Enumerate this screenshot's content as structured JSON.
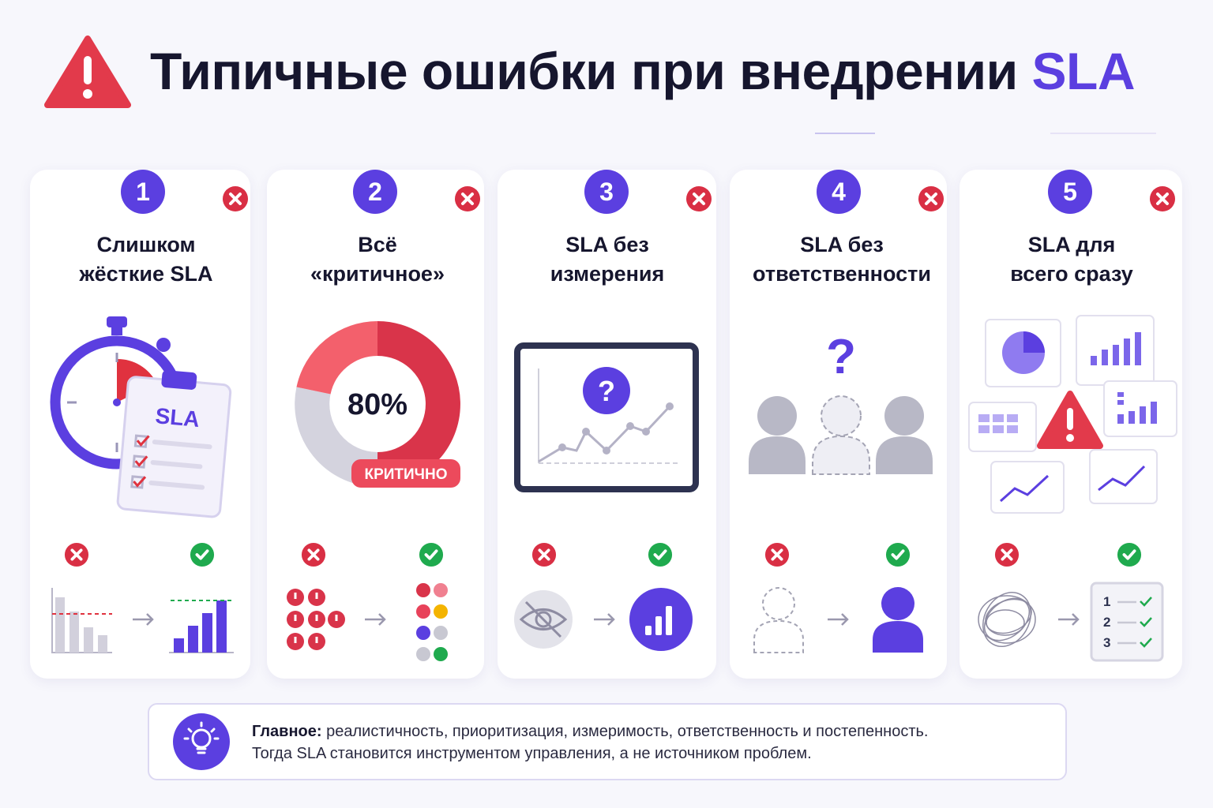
{
  "header": {
    "title": "Типичные ошибки при внедрении",
    "title_accent": "SLA"
  },
  "cards": [
    {
      "number": "1",
      "title_lines": [
        "Слишком",
        "жёсткие SLA"
      ],
      "labels": [
        "SLA"
      ]
    },
    {
      "number": "2",
      "title_lines": [
        "Всё",
        "«критичное»"
      ],
      "labels": [
        "80%",
        "КРИТИЧНО"
      ]
    },
    {
      "number": "3",
      "title_lines": [
        "SLA без",
        "измерения"
      ],
      "labels": [
        "?"
      ]
    },
    {
      "number": "4",
      "title_lines": [
        "SLA без",
        "ответственности"
      ],
      "labels": [
        "?"
      ]
    },
    {
      "number": "5",
      "title_lines": [
        "SLA для",
        "всего сразу"
      ],
      "labels": [
        "1",
        "2",
        "3"
      ]
    }
  ],
  "footer": {
    "lead": "Главное:",
    "line1": "реалистичность, приоритизация, измеримость, ответственность и постепенность.",
    "line2": "Тогда SLA становится инструментом управления, а не источником проблем."
  }
}
